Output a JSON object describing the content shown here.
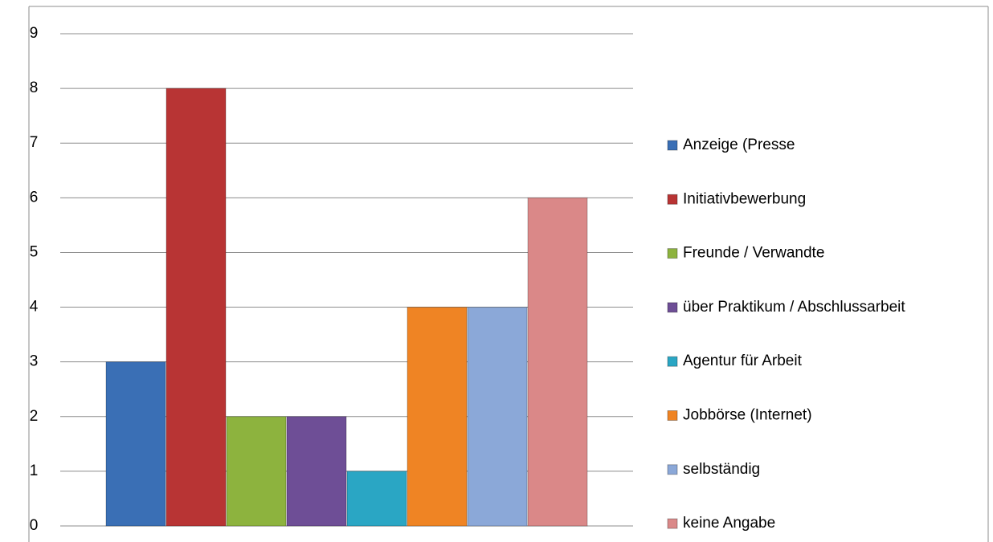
{
  "chart_data": {
    "type": "bar",
    "series": [
      {
        "name": "Anzeige (Presse",
        "color": "#3a6fb5",
        "values": [
          3
        ]
      },
      {
        "name": "Initiativbewerbung",
        "color": "#b83434",
        "values": [
          8
        ]
      },
      {
        "name": "Freunde / Verwandte",
        "color": "#8db33e",
        "values": [
          2
        ]
      },
      {
        "name": "über Praktikum / Abschlussarbeit",
        "color": "#6e4e96",
        "values": [
          2
        ]
      },
      {
        "name": "Agentur für Arbeit",
        "color": "#2aa6c4",
        "values": [
          1
        ]
      },
      {
        "name": "Jobbörse (Internet)",
        "color": "#ef8424",
        "values": [
          4
        ]
      },
      {
        "name": "selbständig",
        "color": "#8ba8d8",
        "values": [
          4
        ]
      },
      {
        "name": "keine Angabe",
        "color": "#da8888",
        "values": [
          6
        ]
      }
    ],
    "ylim": [
      0,
      9
    ],
    "yticks": [
      0,
      1,
      2,
      3,
      4,
      5,
      6,
      7,
      8,
      9
    ],
    "grid": true,
    "legend": "right"
  }
}
